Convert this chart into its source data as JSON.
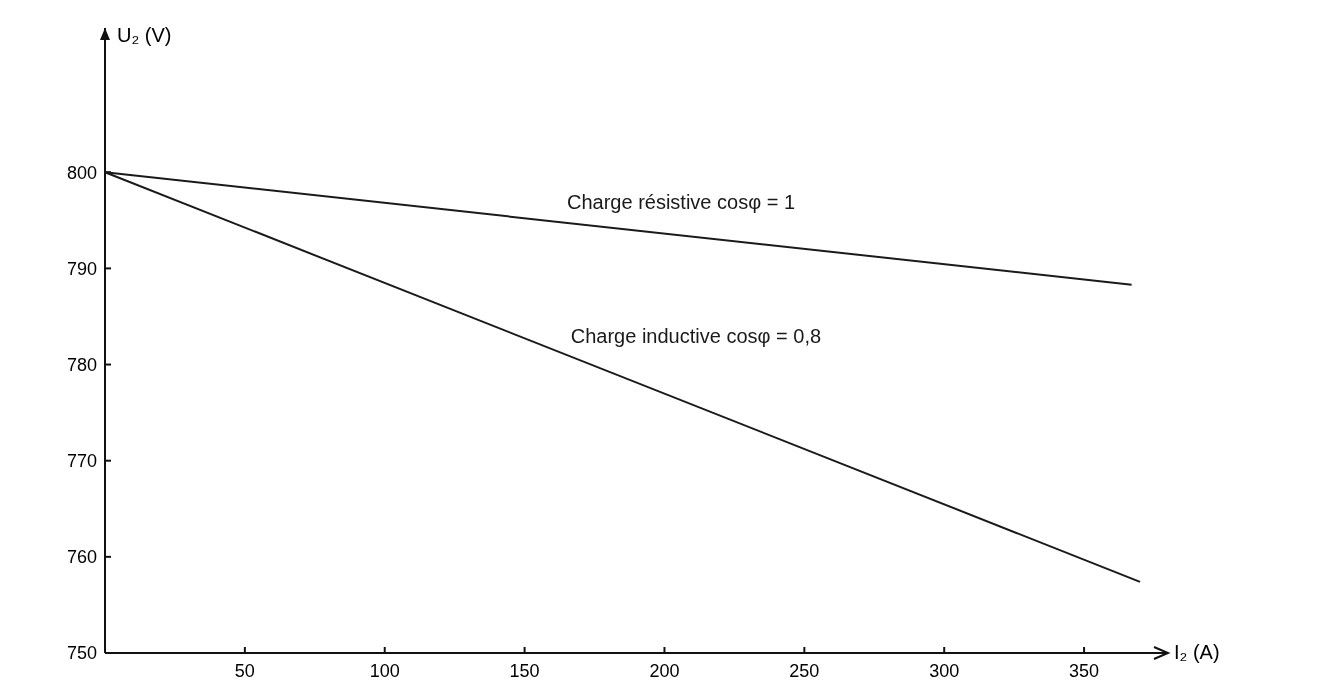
{
  "chart_data": {
    "type": "line",
    "xlabel": "I₂ (A)",
    "ylabel": "U₂ (V)",
    "xlim": [
      0,
      380
    ],
    "xticks": [
      50,
      100,
      150,
      200,
      250,
      300,
      350
    ],
    "ylim": [
      750,
      815
    ],
    "yticks": [
      750,
      760,
      770,
      780,
      790,
      800
    ],
    "grid": false,
    "marker": "none",
    "line_style": "solid",
    "series": [
      {
        "name": "Charge résistive cosφ = 1",
        "color": "#1a1a1a",
        "x": [
          0,
          367
        ],
        "values": [
          800,
          788.3
        ]
      },
      {
        "name": "Charge inductive cosφ = 0,8",
        "color": "#1a1a1a",
        "x": [
          0,
          370
        ],
        "values": [
          800,
          757.4
        ]
      }
    ]
  }
}
